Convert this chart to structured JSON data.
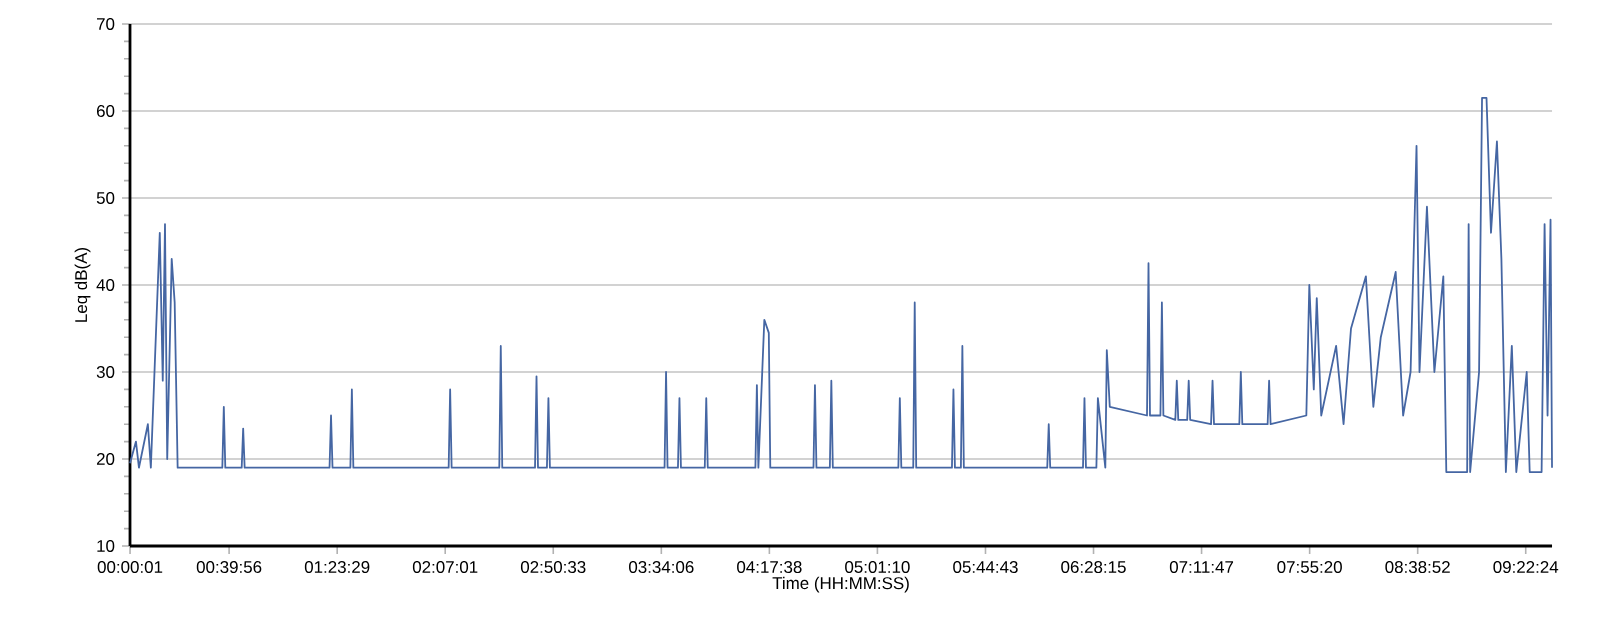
{
  "chart_data": {
    "type": "line",
    "xlabel": "Time (HH:MM:SS)",
    "ylabel": "Leq dB(A)",
    "xlim": [
      0,
      9.55
    ],
    "ylim": [
      10,
      70
    ],
    "xticks": [
      {
        "value": 0.0003,
        "label": "00:00:01"
      },
      {
        "value": 0.6656,
        "label": "00:39:56"
      },
      {
        "value": 1.3914,
        "label": "01:23:29"
      },
      {
        "value": 2.1169,
        "label": "02:07:01"
      },
      {
        "value": 2.8425,
        "label": "02:50:33"
      },
      {
        "value": 3.5683,
        "label": "03:34:06"
      },
      {
        "value": 4.2939,
        "label": "04:17:38"
      },
      {
        "value": 5.0194,
        "label": "05:01:10"
      },
      {
        "value": 5.7453,
        "label": "05:44:43"
      },
      {
        "value": 6.4708,
        "label": "06:28:15"
      },
      {
        "value": 7.1964,
        "label": "07:11:47"
      },
      {
        "value": 7.9222,
        "label": "07:55:20"
      },
      {
        "value": 8.6478,
        "label": "08:38:52"
      },
      {
        "value": 9.3733,
        "label": "09:22:24"
      }
    ],
    "yticks": [
      10,
      20,
      30,
      40,
      50,
      60,
      70
    ],
    "grid": "y",
    "marker": "none",
    "line_style": "solid",
    "series": [
      {
        "color": "#4566a3",
        "x": [
          0.0,
          0.04,
          0.06,
          0.12,
          0.14,
          0.2,
          0.22,
          0.235,
          0.25,
          0.28,
          0.3,
          0.32,
          0.62,
          0.63,
          0.64,
          0.75,
          0.76,
          0.77,
          1.34,
          1.35,
          1.36,
          1.48,
          1.49,
          1.5,
          2.14,
          2.15,
          2.16,
          2.48,
          2.49,
          2.5,
          2.72,
          2.73,
          2.74,
          2.8,
          2.81,
          2.82,
          3.59,
          3.6,
          3.61,
          3.68,
          3.69,
          3.7,
          3.86,
          3.87,
          3.88,
          4.2,
          4.21,
          4.22,
          4.26,
          4.29,
          4.3,
          4.59,
          4.6,
          4.61,
          4.7,
          4.71,
          4.72,
          5.16,
          5.17,
          5.18,
          5.26,
          5.27,
          5.28,
          5.52,
          5.53,
          5.54,
          5.58,
          5.59,
          5.6,
          6.16,
          6.17,
          6.18,
          6.4,
          6.41,
          6.42,
          6.49,
          6.5,
          6.55,
          6.56,
          6.58,
          6.83,
          6.84,
          6.85,
          6.92,
          6.93,
          6.94,
          7.02,
          7.03,
          7.04,
          7.1,
          7.11,
          7.12,
          7.26,
          7.27,
          7.28,
          7.45,
          7.46,
          7.47,
          7.64,
          7.65,
          7.66,
          7.9,
          7.92,
          7.95,
          7.97,
          8.0,
          8.1,
          8.15,
          8.2,
          8.3,
          8.35,
          8.4,
          8.5,
          8.55,
          8.6,
          8.64,
          8.66,
          8.71,
          8.76,
          8.82,
          8.84,
          8.98,
          8.99,
          9.0,
          9.06,
          9.08,
          9.11,
          9.14,
          9.18,
          9.21,
          9.24,
          9.28,
          9.31,
          9.38,
          9.4,
          9.48,
          9.5,
          9.52,
          9.54,
          9.55
        ],
        "values": [
          19.5,
          22,
          19,
          24,
          19,
          46,
          29,
          47,
          20,
          43,
          38,
          19,
          19,
          26,
          19,
          19,
          23.5,
          19,
          19,
          25,
          19,
          19,
          28,
          19,
          19,
          28,
          19,
          19,
          33,
          19,
          19,
          29.5,
          19,
          19,
          27,
          19,
          19,
          30,
          19,
          19,
          27,
          19,
          19,
          27,
          19,
          19,
          28.5,
          19,
          36,
          34.5,
          19,
          19,
          28.5,
          19,
          19,
          29,
          19,
          19,
          27,
          19,
          19,
          38,
          19,
          19,
          28,
          19,
          19,
          33,
          19,
          19,
          24,
          19,
          19,
          27,
          19,
          19,
          27,
          19,
          32.5,
          26,
          25,
          42.5,
          25,
          25,
          38,
          25,
          24.5,
          29,
          24.5,
          24.5,
          29,
          24.5,
          24,
          29,
          24,
          24,
          30,
          24,
          24,
          29,
          24,
          25,
          40,
          28,
          38.5,
          25,
          33,
          24,
          35,
          41,
          26,
          34,
          41.5,
          25,
          30,
          56,
          30,
          49,
          30,
          41,
          18.5,
          18.5,
          47,
          18.5,
          30,
          61.5,
          61.5,
          46,
          56.5,
          43,
          18.5,
          33,
          18.5,
          30,
          18.5,
          18.5,
          47,
          25,
          47.5,
          19
        ]
      }
    ]
  }
}
